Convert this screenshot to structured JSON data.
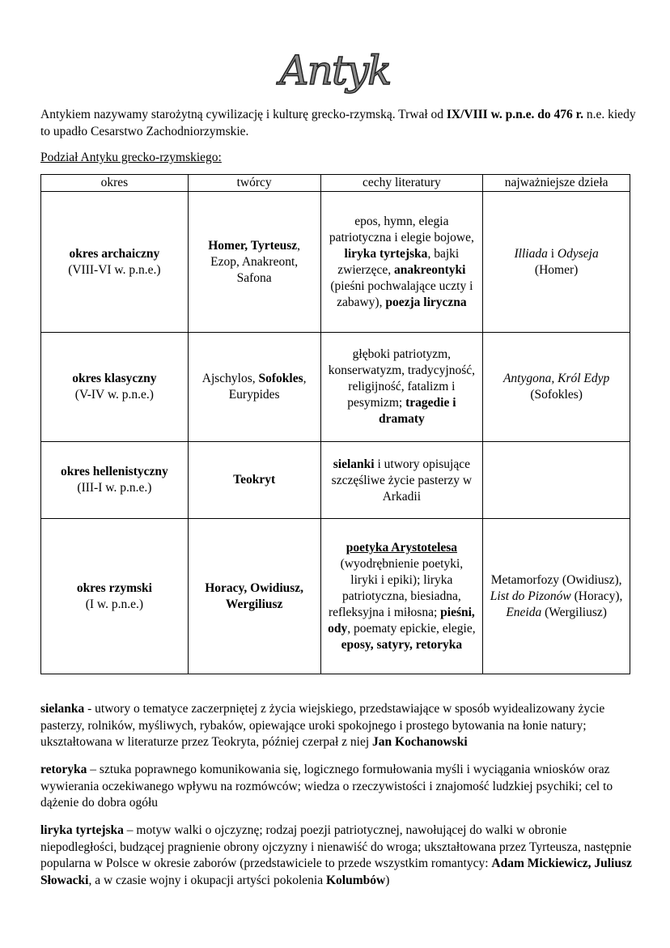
{
  "title": "Antyk",
  "intro": [
    {
      "t": "Antykiem nazywamy starożytną cywilizację i kulturę grecko-rzymską. Trwał od "
    },
    {
      "t": "IX/VIII w. p.n.e. do 476 r.",
      "b": true
    },
    {
      "t": " n.e. kiedy to upadło Cesarstwo Zachodniorzymskie."
    }
  ],
  "subheading": "Podział Antyku grecko-rzymskiego:",
  "table": {
    "headers": [
      "okres",
      "twórcy",
      "cechy literatury",
      "najważniejsze dzieła"
    ],
    "rows": [
      [
        [
          {
            "t": "okres archaiczny",
            "b": true
          },
          {
            "br": 1
          },
          {
            "t": "(VIII-VI w. p.n.e.)"
          }
        ],
        [
          {
            "t": "Homer, Tyrteusz",
            "b": true
          },
          {
            "t": ", Ezop, Anakreont, Safona"
          }
        ],
        [
          {
            "t": "epos, hymn, elegia patriotyczna i elegie bojowe, "
          },
          {
            "t": "liryka tyrtejska",
            "b": true
          },
          {
            "t": ", bajki zwierzęce, "
          },
          {
            "t": "anakreontyki",
            "b": true
          },
          {
            "t": " (pieśni pochwalające uczty i zabawy), "
          },
          {
            "t": "poezja liryczna",
            "b": true
          }
        ],
        [
          {
            "t": "Illiada",
            "i": true
          },
          {
            "t": " i "
          },
          {
            "t": "Odyseja",
            "i": true
          },
          {
            "br": 1
          },
          {
            "t": "(Homer)"
          }
        ]
      ],
      [
        [
          {
            "t": "okres klasyczny",
            "b": true
          },
          {
            "br": 1
          },
          {
            "t": "(V-IV w. p.n.e.)"
          }
        ],
        [
          {
            "t": "Ajschylos, "
          },
          {
            "t": "Sofokles",
            "b": true
          },
          {
            "t": ", Eurypides"
          }
        ],
        [
          {
            "t": "głęboki patriotyzm, konserwatyzm, tradycyjność, religijność, fatalizm i pesymizm; "
          },
          {
            "t": "tragedie i dramaty",
            "b": true
          }
        ],
        [
          {
            "t": "Antygona, Król Edyp",
            "i": true
          },
          {
            "br": 1
          },
          {
            "t": "(Sofokles)"
          }
        ]
      ],
      [
        [
          {
            "t": "okres hellenistyczny",
            "b": true
          },
          {
            "br": 1
          },
          {
            "t": "(III-I w. p.n.e.)"
          }
        ],
        [
          {
            "t": "Teokryt",
            "b": true
          }
        ],
        [
          {
            "t": "sielanki",
            "b": true
          },
          {
            "t": " i utwory opisujące szczęśliwe życie pasterzy w Arkadii"
          }
        ],
        []
      ],
      [
        [
          {
            "t": "okres rzymski",
            "b": true
          },
          {
            "br": 1
          },
          {
            "t": "(I w. p.n.e.)"
          }
        ],
        [
          {
            "t": "Horacy, Owidiusz, Wergiliusz",
            "b": true
          }
        ],
        [
          {
            "t": "poetyka Arystotelesa",
            "b": true,
            "u": true
          },
          {
            "t": " (wyodrębnienie poetyki, liryki i epiki); liryka patriotyczna, biesiadna, refleksyjna i miłosna; "
          },
          {
            "t": "pieśni, ody",
            "b": true
          },
          {
            "t": ", poematy epickie, elegie, "
          },
          {
            "t": "eposy, satyry, retoryka",
            "b": true
          }
        ],
        [
          {
            "t": "Metamorfozy (Owidiusz), "
          },
          {
            "t": "List do Pizonów",
            "i": true
          },
          {
            "t": " (Horacy), "
          },
          {
            "t": "Eneida",
            "i": true
          },
          {
            "t": " (Wergiliusz)"
          }
        ]
      ]
    ]
  },
  "definitions": [
    [
      {
        "t": "sielanka",
        "b": true
      },
      {
        "t": " - utwory o tematyce zaczerpniętej z życia wiejskiego, przedstawiające w sposób wyidealizowany życie pasterzy, rolników, myśliwych, rybaków, opiewające uroki spokojnego i prostego bytowania na łonie natury; ukształtowana w literaturze przez Teokryta, później czerpał z niej "
      },
      {
        "t": "Jan Kochanowski",
        "b": true
      }
    ],
    [
      {
        "t": "retoryka",
        "b": true
      },
      {
        "t": " – sztuka poprawnego komunikowania się, logicznego formułowania myśli i wyciągania wniosków oraz wywierania oczekiwanego wpływu na rozmówców; wiedza o rzeczywistości i znajomość ludzkiej psychiki; cel to dążenie do dobra ogółu"
      }
    ],
    [
      {
        "t": "liryka tyrtejska",
        "b": true
      },
      {
        "t": " – motyw walki o ojczyznę; rodzaj poezji patriotycznej, nawołującej do walki w obronie niepodległości, budzącej pragnienie obrony ojczyzny i nienawiść do wroga; ukształtowana przez Tyrteusza, następnie popularna w Polsce w okresie zaborów (przedstawiciele to przede wszystkim romantycy: "
      },
      {
        "t": "Adam Mickiewicz, Juliusz Słowacki",
        "b": true
      },
      {
        "t": ", a w czasie wojny i okupacji artyści pokolenia "
      },
      {
        "t": "Kolumbów",
        "b": true
      },
      {
        "t": ")"
      }
    ]
  ]
}
